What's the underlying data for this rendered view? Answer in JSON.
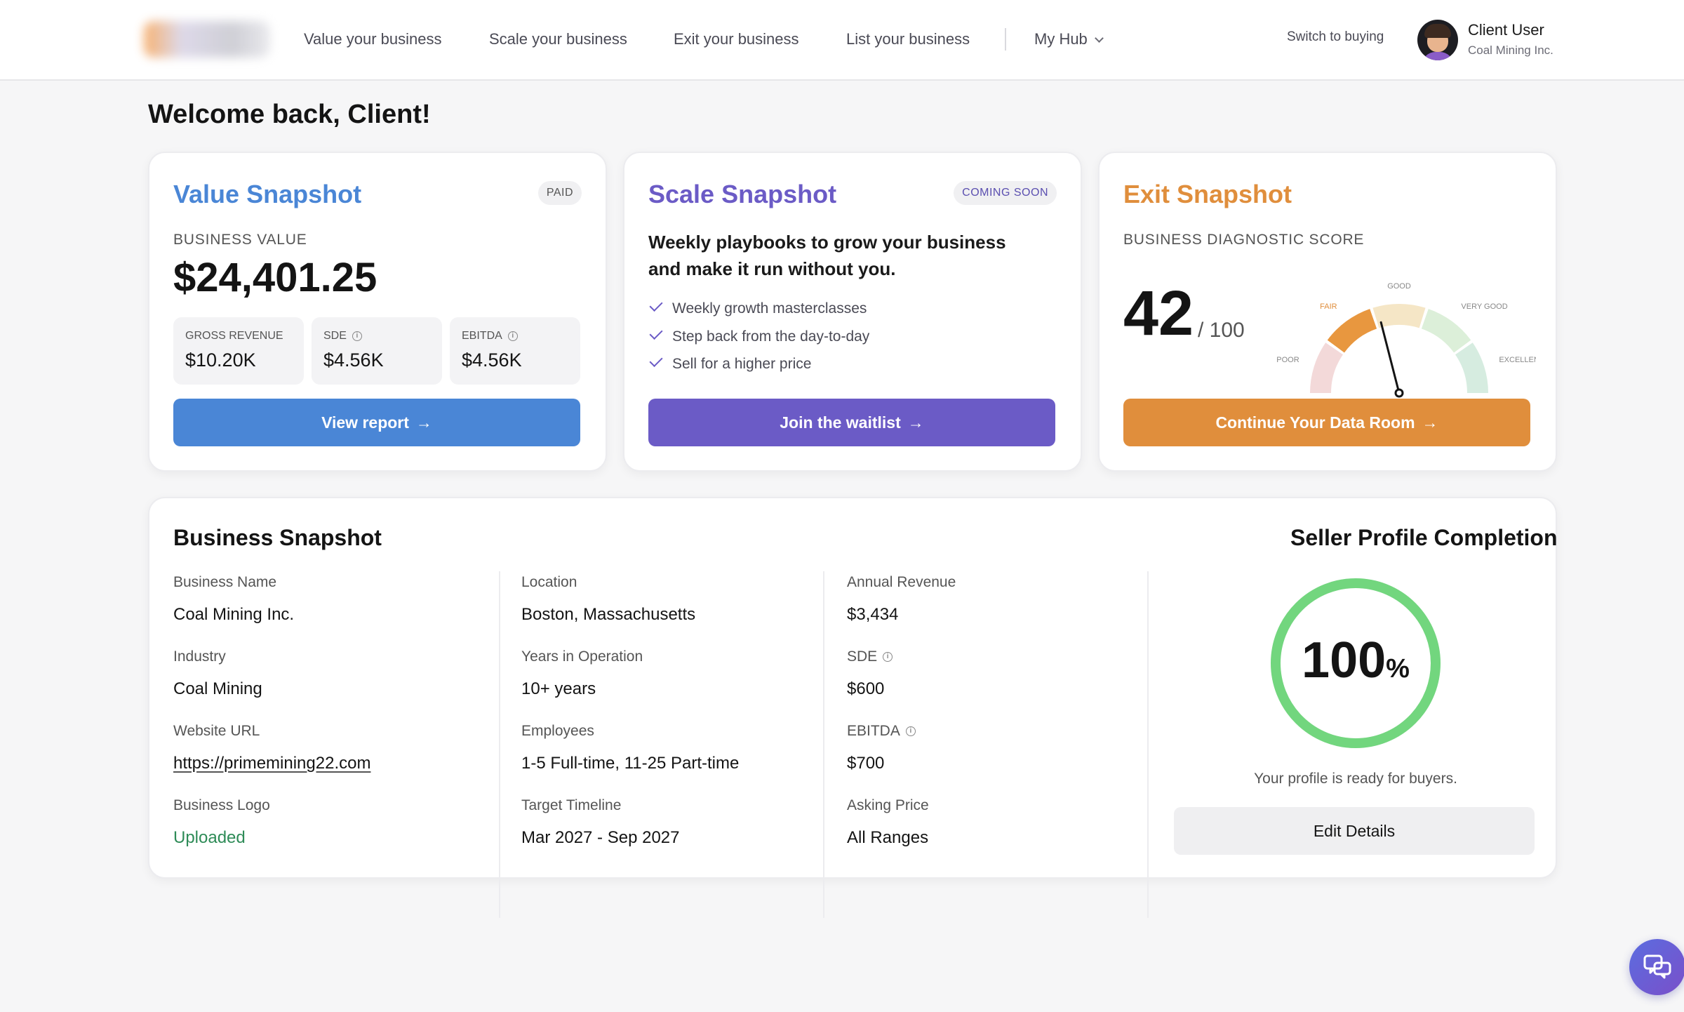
{
  "header": {
    "nav": [
      "Value your business",
      "Scale your business",
      "Exit your business",
      "List your business"
    ],
    "hub_label": "My Hub",
    "switch_label": "Switch to buying",
    "user_name": "Client User",
    "user_org": "Coal Mining Inc."
  },
  "welcome": "Welcome back, Client!",
  "value_card": {
    "title": "Value Snapshot",
    "badge": "PAID",
    "label": "BUSINESS VALUE",
    "value": "$24,401.25",
    "stats": [
      {
        "label": "GROSS REVENUE",
        "value": "$10.20K"
      },
      {
        "label": "SDE",
        "value": "$4.56K"
      },
      {
        "label": "EBITDA",
        "value": "$4.56K"
      }
    ],
    "button": "View report",
    "color": "#4a86d6"
  },
  "scale_card": {
    "title": "Scale Snapshot",
    "badge": "COMING SOON",
    "description": "Weekly playbooks to grow your business and make it run without you.",
    "items": [
      "Weekly growth masterclasses",
      "Step back from the day-to-day",
      "Sell for a higher price"
    ],
    "button": "Join the waitlist",
    "color": "#6b5bc6"
  },
  "exit_card": {
    "title": "Exit Snapshot",
    "label": "BUSINESS DIAGNOSTIC SCORE",
    "score": "42",
    "score_of": "/ 100",
    "gauge_labels": [
      "POOR",
      "FAIR",
      "GOOD",
      "VERY GOOD",
      "EXCELLENT"
    ],
    "score_fraction": 0.42,
    "button": "Continue Your Data Room",
    "color": "#e08e3c"
  },
  "business_snapshot": {
    "title": "Business Snapshot",
    "col1": [
      {
        "label": "Business Name",
        "value": "Coal Mining Inc."
      },
      {
        "label": "Industry",
        "value": "Coal Mining"
      },
      {
        "label": "Website URL",
        "value": "https://primemining22.com"
      },
      {
        "label": "Business Logo",
        "value": "Uploaded"
      }
    ],
    "col2": [
      {
        "label": "Location",
        "value": "Boston, Massachusetts"
      },
      {
        "label": "Years in Operation",
        "value": "10+ years"
      },
      {
        "label": "Employees",
        "value": "1-5 Full-time, 11-25 Part-time"
      },
      {
        "label": "Target Timeline",
        "value": "Mar 2027 - Sep 2027"
      }
    ],
    "col3": [
      {
        "label": "Annual Revenue",
        "value": "$3,434"
      },
      {
        "label": "SDE",
        "value": "$600"
      },
      {
        "label": "EBITDA",
        "value": "$700"
      },
      {
        "label": "Asking Price",
        "value": "All Ranges"
      }
    ]
  },
  "profile": {
    "title": "Seller Profile Completion",
    "percent": "100",
    "percent_sign": "%",
    "completion_fraction": 1.0,
    "message": "Your profile is ready for buyers.",
    "button": "Edit Details",
    "ring_color": "#72d67e"
  }
}
